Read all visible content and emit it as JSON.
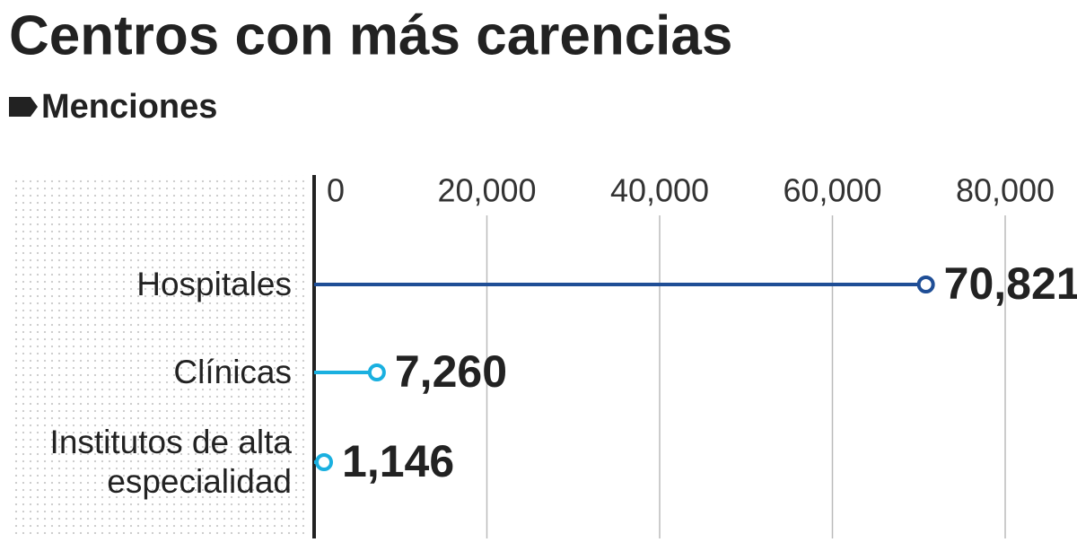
{
  "chart_data": {
    "type": "lollipop",
    "title": "Centros con más carencias",
    "subtitle": "Menciones",
    "categories": [
      "Hospitales",
      "Clínicas",
      "Institutos de alta especialidad"
    ],
    "values": [
      70821,
      7260,
      1146
    ],
    "value_labels": [
      "70,821",
      "7,260",
      "1,146"
    ],
    "colors": [
      "#1f4e96",
      "#1ab0e0",
      "#1ab0e0"
    ],
    "xlim": [
      0,
      80000
    ],
    "xticks": [
      0,
      {
        "value": 20000,
        "label": "20,000"
      },
      {
        "value": 40000,
        "label": "40,000"
      },
      {
        "value": 60000,
        "label": "60,000"
      },
      {
        "value": 80000,
        "label": "80,000"
      }
    ],
    "grid": true
  }
}
